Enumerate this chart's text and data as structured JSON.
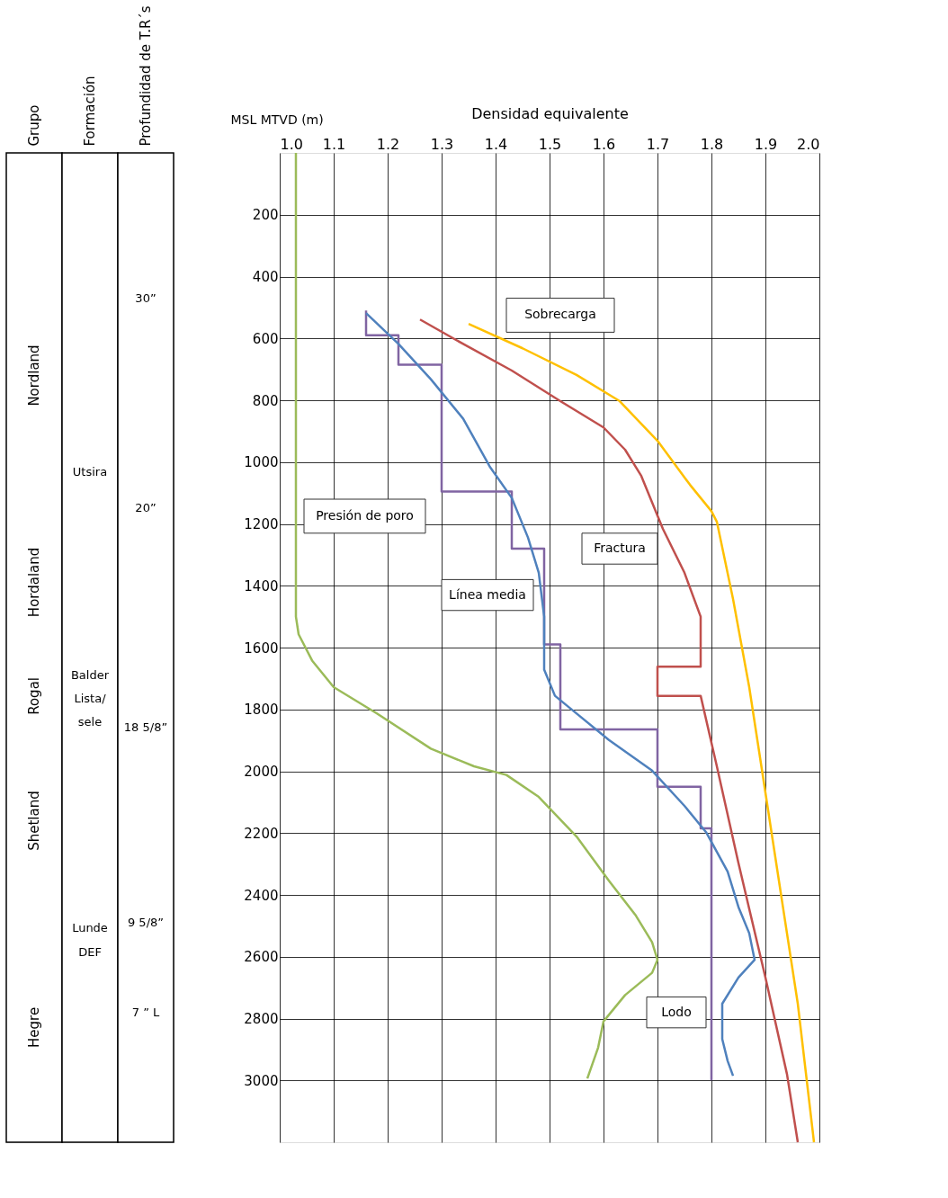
{
  "chart_data": [
    {
      "type": "other",
      "categories": [
        "Grupo",
        "Formación",
        "Profundidad de T.R´s"
      ],
      "annotations": [
        {
          "text": "Nordland",
          "x": "Grupo"
        },
        {
          "text": "Hordaland",
          "x": "Grupo"
        },
        {
          "text": "Rogal",
          "x": "Grupo"
        },
        {
          "text": "Shetland",
          "x": "Grupo"
        },
        {
          "text": "Hegre",
          "x": "Grupo"
        },
        {
          "text": "Utsira",
          "x": "Formación"
        },
        {
          "text": "Balder",
          "x": "Formación"
        },
        {
          "text": "Lista/",
          "x": "Formación"
        },
        {
          "text": "sele",
          "x": "Formación"
        },
        {
          "text": "Lunde",
          "x": "Formación"
        },
        {
          "text": "DEF",
          "x": "Formación"
        },
        {
          "text": "30”",
          "x": "Profundidad de T.R´s"
        },
        {
          "text": "20”",
          "x": "Profundidad de T.R´s"
        },
        {
          "text": "18 5/8”",
          "x": "Profundidad de T.R´s"
        },
        {
          "text": "9 5/8”",
          "x": "Profundidad de T.R´s"
        },
        {
          "text": "7 ” L",
          "x": "Profundidad de T.R´s"
        }
      ]
    },
    {
      "type": "line",
      "xlabel": "Densidad equivalente",
      "ylabel": "MSL MTVD (m)",
      "xlim": [
        1.0,
        2.0
      ],
      "xticks": [
        {
          "value": 1.0,
          "label": "1.0"
        },
        {
          "value": 1.1,
          "label": "1.1"
        },
        {
          "value": 1.2,
          "label": "1.2"
        },
        {
          "value": 1.3,
          "label": "1.3"
        },
        {
          "value": 1.4,
          "label": "1.4"
        },
        {
          "value": 1.5,
          "label": "1.5"
        },
        {
          "value": 1.6,
          "label": "1.6"
        },
        {
          "value": 1.7,
          "label": "1.7"
        },
        {
          "value": 1.8,
          "label": "1.8"
        },
        {
          "value": 1.9,
          "label": "1.9"
        },
        {
          "value": 2.0,
          "label": "2.0"
        }
      ],
      "ylim": [
        3200,
        0
      ],
      "yticks": [
        200,
        400,
        600,
        800,
        1000,
        1200,
        1400,
        1600,
        1800,
        2000,
        2200,
        2400,
        2600,
        2800,
        3000
      ],
      "grid": true,
      "legend": false,
      "marker": "none",
      "line_style": "solid",
      "series": [
        {
          "name": "Lodo",
          "color": "#8064a2",
          "x": [
            1.16,
            1.16,
            1.22,
            1.22,
            1.3,
            1.3,
            1.43,
            1.43,
            1.49,
            1.49,
            1.52,
            1.52,
            1.7,
            1.7,
            1.78,
            1.78,
            1.8,
            1.8
          ],
          "values": [
            510,
            590,
            590,
            685,
            685,
            1095,
            1095,
            1280,
            1280,
            1590,
            1590,
            1865,
            1865,
            2050,
            2050,
            2185,
            2185,
            3000
          ]
        },
        {
          "name": "Línea media",
          "color": "#4f81bd",
          "x": [
            1.16,
            1.22,
            1.28,
            1.34,
            1.39,
            1.43,
            1.46,
            1.48,
            1.49,
            1.49,
            1.51,
            1.54,
            1.61,
            1.69,
            1.75,
            1.79,
            1.83,
            1.85,
            1.87,
            1.88,
            1.85,
            1.82,
            1.82,
            1.83,
            1.84
          ],
          "values": [
            518,
            618,
            732,
            860,
            1017,
            1116,
            1244,
            1358,
            1500,
            1671,
            1756,
            1799,
            1899,
            1998,
            2112,
            2197,
            2325,
            2439,
            2524,
            2610,
            2667,
            2752,
            2866,
            2937,
            2985
          ]
        },
        {
          "name": "Presión de poro",
          "color": "#9bbb59",
          "x": [
            1.03,
            1.03,
            1.035,
            1.06,
            1.1,
            1.18,
            1.28,
            1.36,
            1.42,
            1.48,
            1.55,
            1.61,
            1.66,
            1.69,
            1.7,
            1.69,
            1.64,
            1.6,
            1.59,
            1.57
          ],
          "values": [
            0,
            1500,
            1557,
            1642,
            1728,
            1813,
            1927,
            1984,
            2012,
            2083,
            2211,
            2354,
            2467,
            2553,
            2610,
            2652,
            2724,
            2809,
            2894,
            2994
          ]
        },
        {
          "name": "Fractura",
          "color": "#c0504d",
          "x": [
            1.26,
            1.34,
            1.43,
            1.52,
            1.6,
            1.64,
            1.67,
            1.71,
            1.75,
            1.78,
            1.78,
            1.78,
            1.7,
            1.7,
            1.78,
            1.81,
            1.85,
            1.9,
            1.94,
            1.96
          ],
          "values": [
            539,
            618,
            704,
            803,
            888,
            960,
            1045,
            1216,
            1358,
            1500,
            1614,
            1662,
            1662,
            1756,
            1756,
            1984,
            2297,
            2667,
            2980,
            3200
          ]
        },
        {
          "name": "Sobrecarga",
          "color": "#ffc000",
          "x": [
            1.35,
            1.45,
            1.55,
            1.63,
            1.7,
            1.76,
            1.8,
            1.81,
            1.84,
            1.87,
            1.9,
            1.93,
            1.96,
            1.99
          ],
          "values": [
            553,
            632,
            718,
            803,
            931,
            1073,
            1159,
            1193,
            1443,
            1728,
            2069,
            2411,
            2752,
            3200
          ]
        }
      ]
    }
  ]
}
